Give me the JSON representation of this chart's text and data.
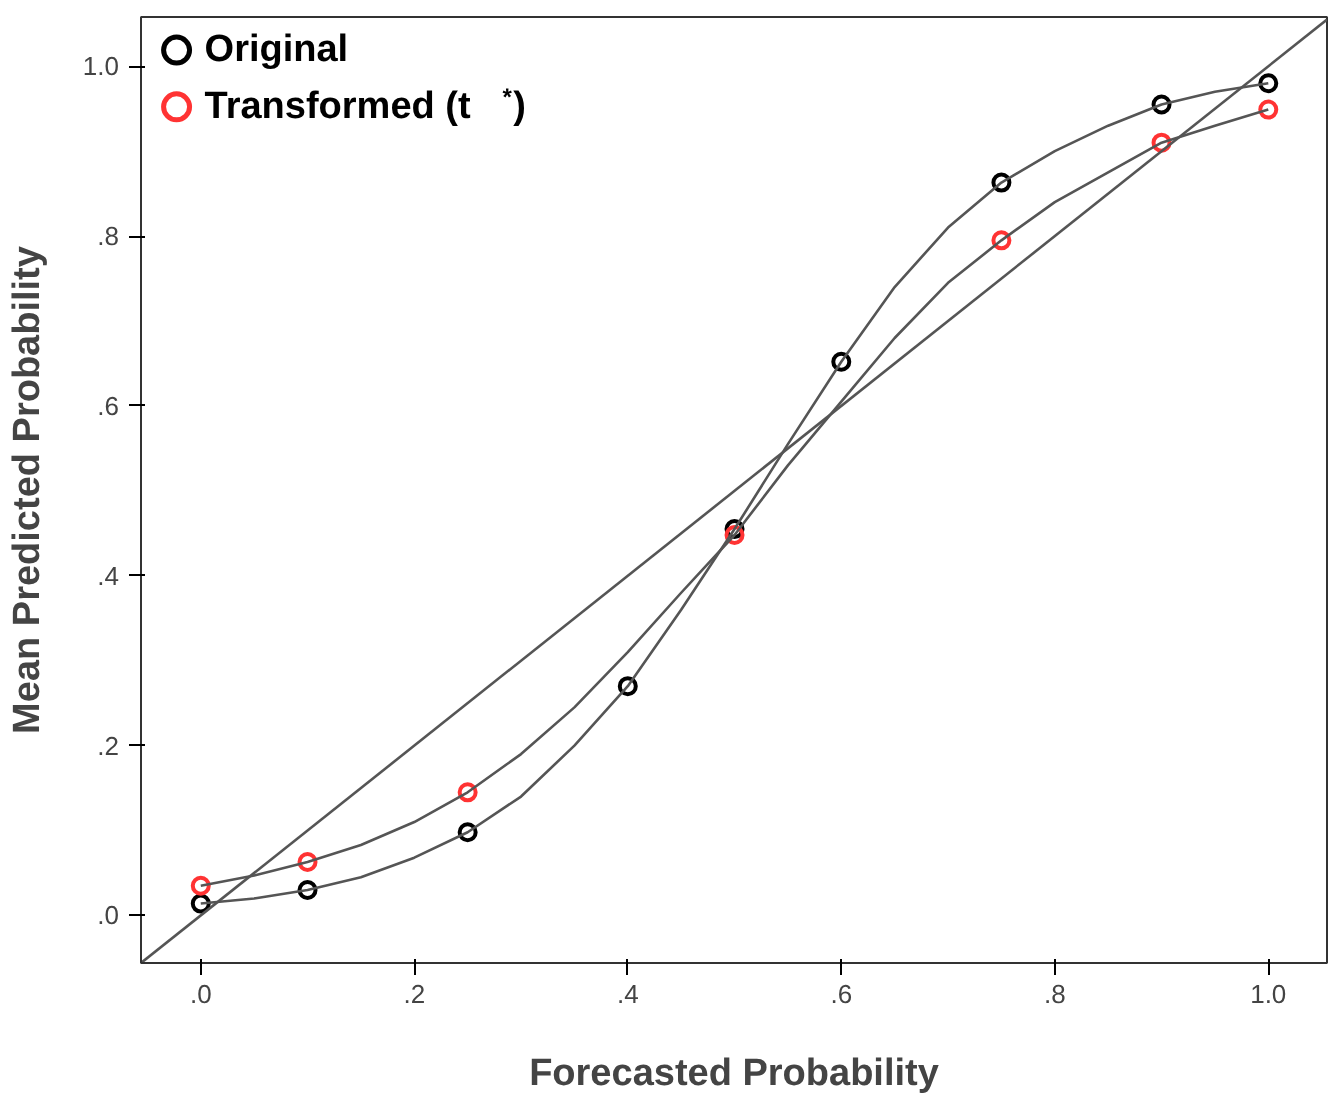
{
  "chart_data": {
    "type": "scatter",
    "xlabel": "Forecasted Probability",
    "ylabel": "Mean Predicted Probability",
    "x": [
      0,
      0.1,
      0.25,
      0.4,
      0.5,
      0.6,
      0.75,
      0.9,
      1.0
    ],
    "series": [
      {
        "name": "Original",
        "color": "#000000",
        "values": [
          0.014,
          0.03,
          0.098,
          0.27,
          0.455,
          0.652,
          0.863,
          0.955,
          0.98
        ]
      },
      {
        "name": "Transformed (t$^{*}$)",
        "color": "#ff3333",
        "values": [
          0.035,
          0.063,
          0.145,
          null,
          0.448,
          null,
          0.795,
          0.91,
          0.949
        ]
      },
      {
        "type": "line",
        "marker": "none",
        "color": "#555555",
        "x": [
          0,
          0.05,
          0.1,
          0.15,
          0.2,
          0.25,
          0.3,
          0.35,
          0.4,
          0.45,
          0.5,
          0.55,
          0.6,
          0.65,
          0.7,
          0.75,
          0.8,
          0.85,
          0.9,
          0.95,
          1.0
        ],
        "values": [
          0.014,
          0.02,
          0.03,
          0.045,
          0.068,
          0.098,
          0.14,
          0.2,
          0.27,
          0.36,
          0.455,
          0.555,
          0.652,
          0.74,
          0.81,
          0.863,
          0.9,
          0.93,
          0.955,
          0.97,
          0.98
        ]
      },
      {
        "type": "line",
        "marker": "none",
        "color": "#555555",
        "x": [
          0,
          0.05,
          0.1,
          0.15,
          0.2,
          0.25,
          0.3,
          0.35,
          0.4,
          0.45,
          0.5,
          0.55,
          0.6,
          0.65,
          0.7,
          0.75,
          0.8,
          0.85,
          0.9,
          0.95,
          1.0
        ],
        "values": [
          0.035,
          0.047,
          0.063,
          0.083,
          0.11,
          0.145,
          0.19,
          0.245,
          0.31,
          0.38,
          0.448,
          0.53,
          0.605,
          0.68,
          0.745,
          0.795,
          0.84,
          0.875,
          0.91,
          0.93,
          0.949
        ]
      },
      {
        "type": "line",
        "marker": "none",
        "color": "#555555",
        "x": [
          -0.056,
          1.055
        ],
        "values": [
          -0.056,
          1.055
        ]
      }
    ],
    "xlim": [
      -0.056,
      1.055
    ],
    "ylim": [
      -0.056,
      1.058
    ],
    "xticks": [
      {
        "value": 0,
        "label": ".0"
      },
      {
        "value": 0.2,
        "label": ".2"
      },
      {
        "value": 0.4,
        "label": ".4"
      },
      {
        "value": 0.6,
        "label": ".6"
      },
      {
        "value": 0.8,
        "label": ".8"
      },
      {
        "value": 1.0,
        "label": "1.0"
      }
    ],
    "yticks": [
      {
        "value": 0,
        "label": ".0"
      },
      {
        "value": 0.2,
        "label": ".2"
      },
      {
        "value": 0.4,
        "label": ".4"
      },
      {
        "value": 0.6,
        "label": ".6"
      },
      {
        "value": 0.8,
        "label": ".8"
      },
      {
        "value": 1.0,
        "label": "1.0"
      }
    ],
    "marker": "circle",
    "legend": "top left",
    "grid": false
  }
}
